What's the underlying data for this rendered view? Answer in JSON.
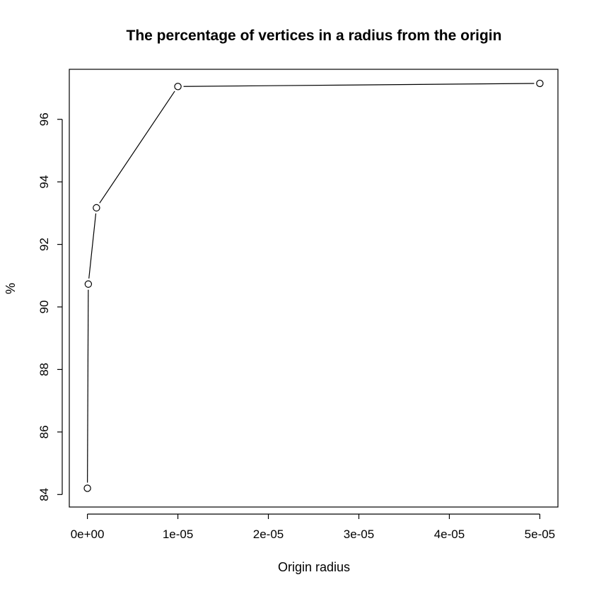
{
  "chart_data": {
    "type": "line",
    "title": "The percentage of vertices in a radius from the origin",
    "xlabel": "Origin radius",
    "ylabel": "%",
    "x_tick_values": [
      0,
      1e-05,
      2e-05,
      3e-05,
      4e-05,
      5e-05
    ],
    "x_tick_labels": [
      "0e+00",
      "1e-05",
      "2e-05",
      "3e-05",
      "4e-05",
      "5e-05"
    ],
    "y_tick_values": [
      84,
      86,
      88,
      90,
      92,
      94,
      96
    ],
    "y_tick_labels": [
      "84",
      "86",
      "88",
      "90",
      "92",
      "94",
      "96"
    ],
    "xlim": [
      -2e-06,
      5.2e-05
    ],
    "ylim": [
      83.6,
      97.6
    ],
    "grid": false,
    "markers": "open-circle",
    "x": [
      0,
      1e-07,
      1e-06,
      1e-05,
      5e-05
    ],
    "y": [
      84.2,
      90.73,
      93.17,
      97.05,
      97.15
    ]
  }
}
